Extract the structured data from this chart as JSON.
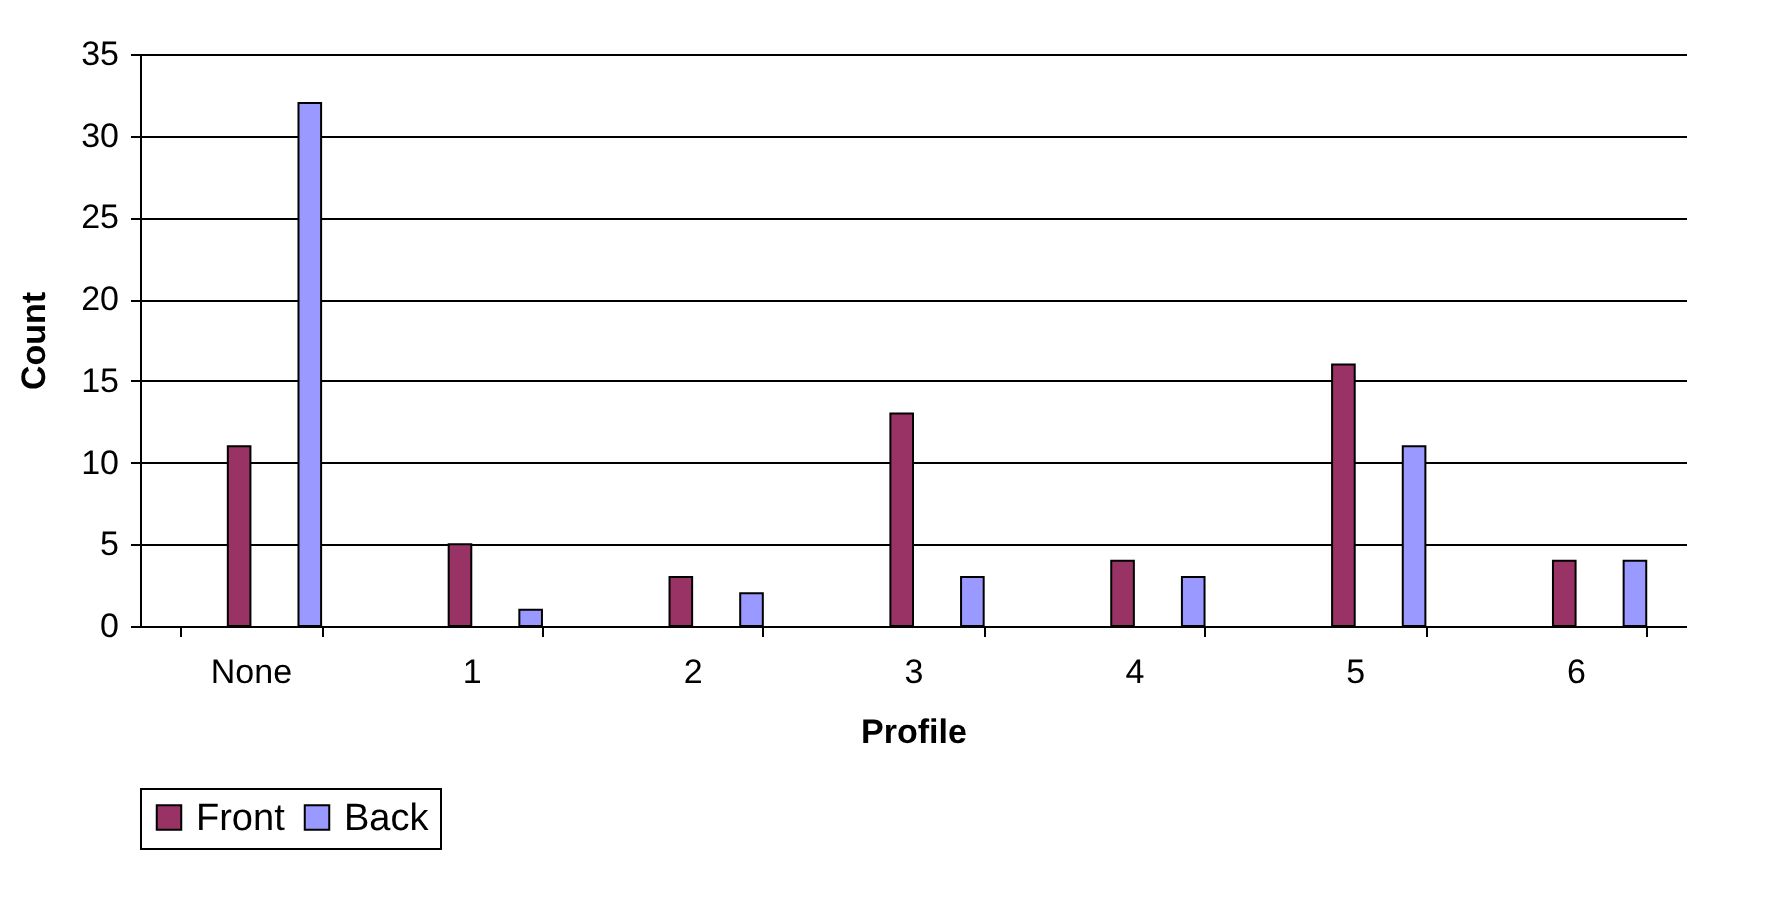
{
  "chart_data": {
    "type": "bar",
    "xlabel": "Profile",
    "ylabel": "Count",
    "categories": [
      "None",
      "1",
      "2",
      "3",
      "4",
      "5",
      "6"
    ],
    "series": [
      {
        "name": "Front",
        "color": "#993366",
        "values": [
          11,
          5,
          3,
          13,
          4,
          16,
          4
        ]
      },
      {
        "name": "Back",
        "color": "#9999ff",
        "values": [
          32,
          1,
          2,
          3,
          3,
          11,
          4
        ]
      }
    ],
    "ylim": [
      0,
      35
    ],
    "yticks": [
      0,
      5,
      10,
      15,
      20,
      25,
      30,
      35
    ],
    "grid": "y",
    "legend": "bottom"
  }
}
